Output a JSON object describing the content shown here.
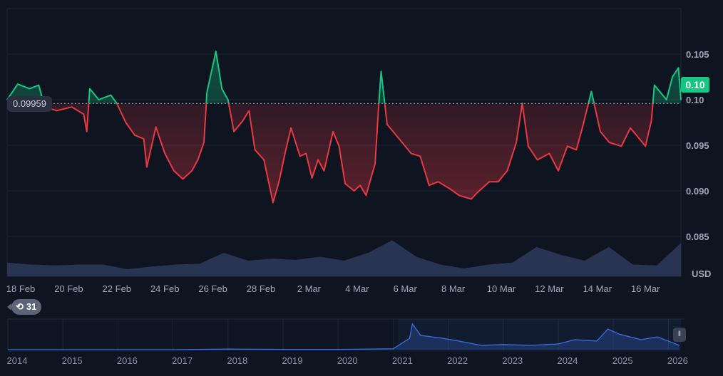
{
  "chart_data": {
    "type": "line",
    "currency": "USD",
    "baseline_value": 0.09959,
    "baseline_label": "0.09959",
    "current_value_label": "0.10",
    "y_ticks": [
      "0.105",
      "0.10",
      "0.095",
      "0.090",
      "0.085"
    ],
    "y_tick_values": [
      0.105,
      0.1,
      0.095,
      0.09,
      0.085
    ],
    "ylim": [
      0.0805,
      0.1095
    ],
    "x_ticks": [
      "18 Feb",
      "20 Feb",
      "22 Feb",
      "24 Feb",
      "26 Feb",
      "28 Feb",
      "2 Mar",
      "4 Mar",
      "6 Mar",
      "8 Mar",
      "10 Mar",
      "12 Mar",
      "14 Mar",
      "16 Mar"
    ],
    "xlim": [
      "17 Feb 10:30",
      "17 Mar 12:00"
    ],
    "grid": true,
    "colors": {
      "above": "#16c784",
      "below": "#ea3943",
      "volume": "#2c3658",
      "navigator": "#3b6fe0",
      "background": "#0e1420"
    },
    "series": [
      {
        "points": [
          [
            "17 Feb 09:00",
            0.1
          ],
          [
            "17 Feb 21:00",
            0.1017
          ],
          [
            "18 Feb 09:00",
            0.1012
          ],
          [
            "18 Feb 18:00",
            0.1016
          ],
          [
            "19 Feb 00:00",
            0.0992
          ],
          [
            "19 Feb 12:00",
            0.0988
          ],
          [
            "20 Feb 03:00",
            0.0992
          ],
          [
            "20 Feb 15:00",
            0.0984
          ],
          [
            "20 Feb 18:00",
            0.0965
          ],
          [
            "20 Feb 21:00",
            0.1012
          ],
          [
            "21 Feb 06:00",
            0.1
          ],
          [
            "21 Feb 18:00",
            0.1005
          ],
          [
            "22 Feb 00:00",
            0.0996
          ],
          [
            "22 Feb 09:00",
            0.0975
          ],
          [
            "22 Feb 18:00",
            0.0961
          ],
          [
            "23 Feb 03:00",
            0.0957
          ],
          [
            "23 Feb 06:00",
            0.0926
          ],
          [
            "23 Feb 15:00",
            0.097
          ],
          [
            "24 Feb 00:00",
            0.0941
          ],
          [
            "24 Feb 09:00",
            0.0922
          ],
          [
            "24 Feb 18:00",
            0.0913
          ],
          [
            "25 Feb 03:00",
            0.0922
          ],
          [
            "25 Feb 09:00",
            0.0934
          ],
          [
            "25 Feb 15:00",
            0.0953
          ],
          [
            "25 Feb 18:00",
            0.1008
          ],
          [
            "26 Feb 03:00",
            0.1053
          ],
          [
            "26 Feb 09:00",
            0.1012
          ],
          [
            "26 Feb 15:00",
            0.1
          ],
          [
            "26 Feb 21:00",
            0.0965
          ],
          [
            "27 Feb 06:00",
            0.0977
          ],
          [
            "27 Feb 12:00",
            0.0988
          ],
          [
            "27 Feb 18:00",
            0.0945
          ],
          [
            "28 Feb 03:00",
            0.0934
          ],
          [
            "28 Feb 12:00",
            0.0887
          ],
          [
            "28 Feb 18:00",
            0.091
          ],
          [
            "1 Mar 00:00",
            0.0941
          ],
          [
            "1 Mar 06:00",
            0.0969
          ],
          [
            "1 Mar 15:00",
            0.0938
          ],
          [
            "1 Mar 21:00",
            0.0941
          ],
          [
            "2 Mar 03:00",
            0.0914
          ],
          [
            "2 Mar 09:00",
            0.0934
          ],
          [
            "2 Mar 15:00",
            0.0922
          ],
          [
            "3 Mar 00:00",
            0.0965
          ],
          [
            "3 Mar 06:00",
            0.0949
          ],
          [
            "3 Mar 12:00",
            0.0908
          ],
          [
            "3 Mar 21:00",
            0.09
          ],
          [
            "4 Mar 03:00",
            0.0906
          ],
          [
            "4 Mar 09:00",
            0.0895
          ],
          [
            "4 Mar 18:00",
            0.093
          ],
          [
            "4 Mar 21:00",
            0.0984
          ],
          [
            "5 Mar 00:00",
            0.1031
          ],
          [
            "5 Mar 06:00",
            0.0973
          ],
          [
            "5 Mar 18:00",
            0.0957
          ],
          [
            "6 Mar 06:00",
            0.0941
          ],
          [
            "6 Mar 15:00",
            0.0938
          ],
          [
            "7 Mar 00:00",
            0.0906
          ],
          [
            "7 Mar 09:00",
            0.091
          ],
          [
            "7 Mar 21:00",
            0.0902
          ],
          [
            "8 Mar 06:00",
            0.0895
          ],
          [
            "8 Mar 18:00",
            0.0891
          ],
          [
            "9 Mar 00:00",
            0.0898
          ],
          [
            "9 Mar 12:00",
            0.091
          ],
          [
            "9 Mar 21:00",
            0.091
          ],
          [
            "10 Mar 06:00",
            0.0922
          ],
          [
            "10 Mar 15:00",
            0.0953
          ],
          [
            "10 Mar 21:00",
            0.0996
          ],
          [
            "11 Mar 03:00",
            0.0949
          ],
          [
            "11 Mar 12:00",
            0.0934
          ],
          [
            "12 Mar 00:00",
            0.0941
          ],
          [
            "12 Mar 09:00",
            0.0922
          ],
          [
            "12 Mar 18:00",
            0.0949
          ],
          [
            "13 Mar 03:00",
            0.0945
          ],
          [
            "13 Mar 09:00",
            0.0969
          ],
          [
            "13 Mar 18:00",
            0.1009
          ],
          [
            "14 Mar 03:00",
            0.0965
          ],
          [
            "14 Mar 12:00",
            0.0953
          ],
          [
            "15 Mar 00:00",
            0.0949
          ],
          [
            "15 Mar 09:00",
            0.0969
          ],
          [
            "15 Mar 18:00",
            0.0957
          ],
          [
            "16 Mar 00:00",
            0.0949
          ],
          [
            "16 Mar 06:00",
            0.0977
          ],
          [
            "16 Mar 09:00",
            0.1016
          ],
          [
            "16 Mar 21:00",
            0.1
          ],
          [
            "17 Mar 03:00",
            0.1025
          ],
          [
            "17 Mar 09:00",
            0.1035
          ],
          [
            "17 Mar 12:00",
            0.1
          ]
        ]
      }
    ],
    "volume_relative": [
      0.35,
      0.3,
      0.28,
      0.3,
      0.3,
      0.18,
      0.25,
      0.3,
      0.32,
      0.6,
      0.4,
      0.45,
      0.42,
      0.5,
      0.4,
      0.6,
      0.92,
      0.5,
      0.3,
      0.2,
      0.3,
      0.35,
      0.75,
      0.55,
      0.4,
      0.75,
      0.3,
      0.28,
      0.85
    ],
    "navigator": {
      "x_ticks": [
        "2014",
        "2015",
        "2016",
        "2017",
        "2018",
        "2019",
        "2020",
        "2021",
        "2022",
        "2023",
        "2024",
        "2025",
        "2026"
      ],
      "relative_values": [
        [
          "2014",
          0.0
        ],
        [
          "2017",
          0.0
        ],
        [
          "2018",
          0.02
        ],
        [
          "2019",
          0.01
        ],
        [
          "2020",
          0.01
        ],
        [
          "2021",
          0.03
        ],
        [
          "2021.3",
          0.4
        ],
        [
          "2021.35",
          0.9
        ],
        [
          "2021.5",
          0.5
        ],
        [
          "2021.9",
          0.4
        ],
        [
          "2022.2",
          0.3
        ],
        [
          "2022.6",
          0.15
        ],
        [
          "2023",
          0.18
        ],
        [
          "2023.5",
          0.15
        ],
        [
          "2024",
          0.2
        ],
        [
          "2024.3",
          0.35
        ],
        [
          "2024.7",
          0.3
        ],
        [
          "2024.9",
          0.72
        ],
        [
          "2025.1",
          0.55
        ],
        [
          "2025.5",
          0.35
        ],
        [
          "2025.8",
          0.45
        ],
        [
          "2026.2",
          0.15
        ]
      ]
    }
  },
  "history_badge": "31"
}
